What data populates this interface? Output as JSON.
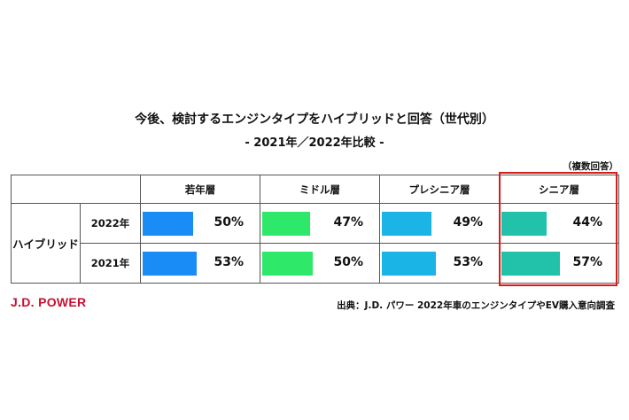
{
  "title": "今後、検討するエンジンタイプをハイブリッドと回答（世代別）",
  "subtitle": "- 2021年／2022年比較 -",
  "note": "（複数回答）",
  "source": "出典：J.D. パワー 2022年車のエンジンタイプやEV購入意向調査",
  "logo": "J.D. POWER",
  "highlight_color": "#d81c1c",
  "chart_data": {
    "type": "bar",
    "group_label": "ハイブリッド",
    "categories": [
      "若年層",
      "ミドル層",
      "プレシニア層",
      "シニア層"
    ],
    "category_colors": [
      "#1a8cf5",
      "#2ee86a",
      "#1ab4e6",
      "#22c1aa"
    ],
    "highlighted_category": "シニア層",
    "series": [
      {
        "name": "2022年",
        "values": [
          50,
          47,
          49,
          44
        ],
        "labels": [
          "50%",
          "47%",
          "49%",
          "44%"
        ]
      },
      {
        "name": "2021年",
        "values": [
          53,
          50,
          53,
          57
        ],
        "labels": [
          "53%",
          "50%",
          "53%",
          "57%"
        ]
      }
    ],
    "unit": "%"
  }
}
